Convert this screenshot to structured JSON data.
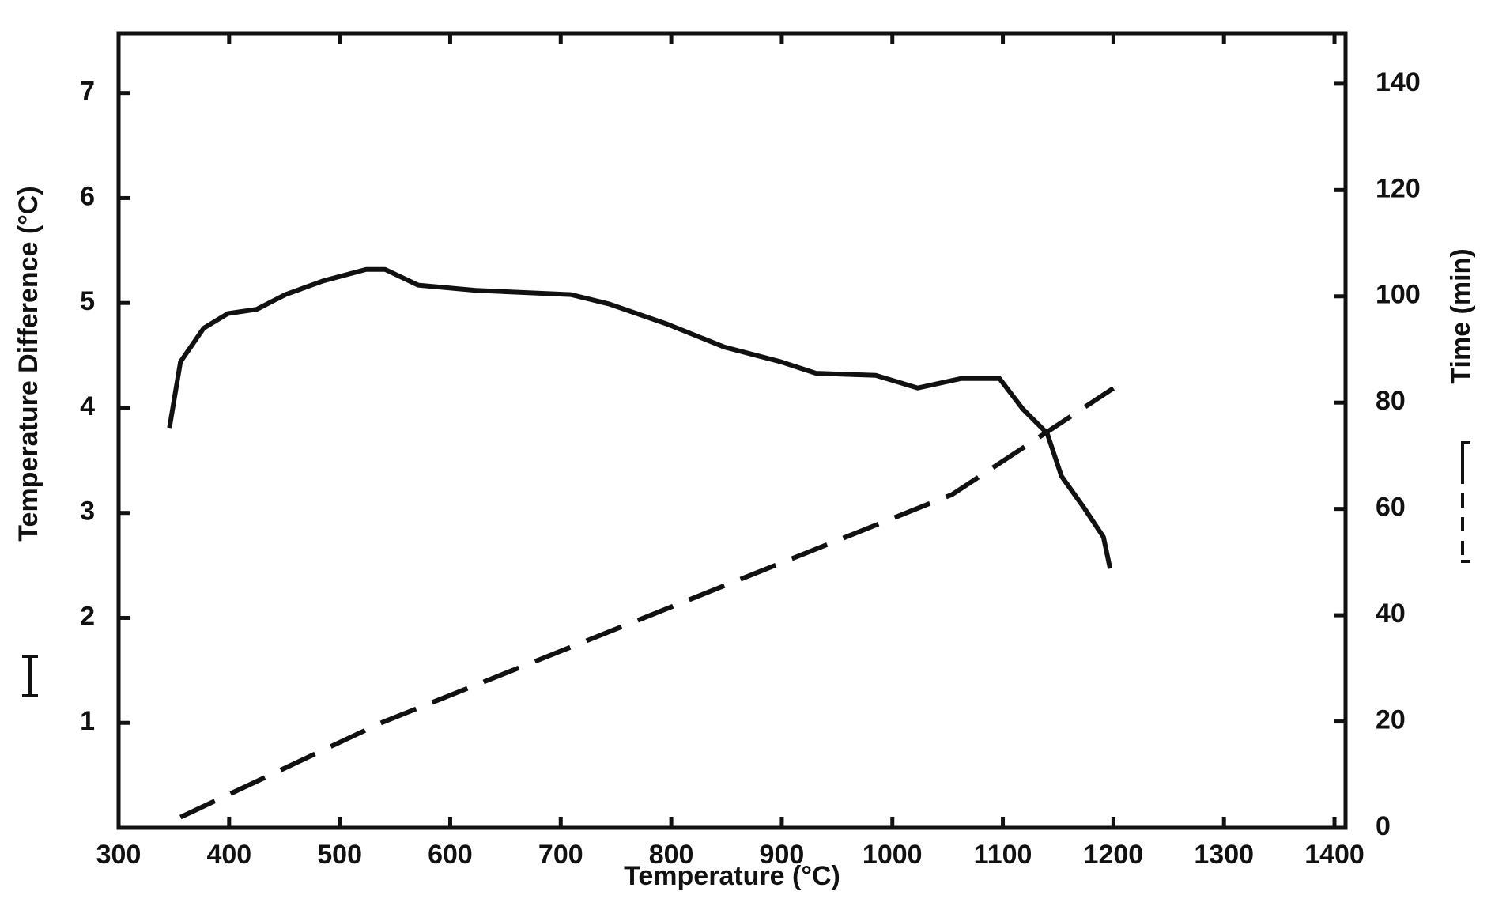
{
  "chart_data": {
    "type": "line",
    "x_label": "Temperature (°C)",
    "y_label": "Temperature Difference (°C)",
    "y2_label": "Time (min)",
    "xlim": [
      300,
      1410
    ],
    "xticks": [
      300,
      400,
      500,
      600,
      700,
      800,
      900,
      1000,
      1100,
      1200,
      1300,
      1400
    ],
    "ylim": [
      0,
      7.57
    ],
    "yticks": [
      1,
      2,
      3,
      4,
      5,
      6,
      7
    ],
    "y2lim": [
      0,
      149.5
    ],
    "y2ticks": [
      0,
      20,
      40,
      60,
      80,
      100,
      120,
      140
    ],
    "series": [
      {
        "color": "#111111",
        "dash": false,
        "x": [
          346,
          356,
          377,
          399,
          425,
          451,
          485,
          524,
          541,
          571,
          623,
          709,
          744,
          796,
          848,
          899,
          931,
          985,
          1023,
          1062,
          1097,
          1118,
          1140,
          1153,
          1174,
          1191,
          1197
        ],
        "values": [
          3.81,
          4.44,
          4.76,
          4.9,
          4.94,
          5.08,
          5.21,
          5.32,
          5.32,
          5.17,
          5.12,
          5.08,
          4.99,
          4.8,
          4.58,
          4.44,
          4.33,
          4.31,
          4.19,
          4.28,
          4.28,
          3.99,
          3.76,
          3.35,
          3.04,
          2.77,
          2.47
        ]
      },
      {
        "color": "#111111",
        "dash": true,
        "axis": "y2",
        "x": [
          356,
          537,
          709,
          881,
          1054,
          1200
        ],
        "values": [
          2,
          19.7,
          34,
          48.3,
          62.7,
          82.7
        ]
      }
    ]
  }
}
